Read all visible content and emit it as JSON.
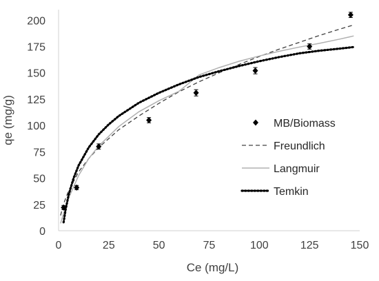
{
  "chart_data": {
    "type": "scatter",
    "xlabel": "Ce (mg/L)",
    "ylabel": "qe (mg/g)",
    "xlim": [
      0,
      150
    ],
    "ylim": [
      0,
      210
    ],
    "x_ticks": [
      "0",
      "25",
      "50",
      "75",
      "100",
      "125",
      "150"
    ],
    "y_ticks": [
      "0",
      "25",
      "50",
      "75",
      "100",
      "125",
      "150",
      "175",
      "200"
    ],
    "grid": "none",
    "legend_position": "right",
    "series": [
      {
        "name": "MB/Biomass",
        "kind": "points",
        "color": "#000000",
        "x": [
          2.5,
          9,
          20,
          45,
          68.5,
          98,
          125,
          145.5
        ],
        "y": [
          22,
          41,
          80,
          105,
          131,
          152,
          175,
          205
        ],
        "error": [
          2,
          2,
          2.5,
          2.5,
          3,
          3,
          2.5,
          2.5
        ]
      },
      {
        "name": "Freundlich",
        "kind": "line",
        "style": "dashed",
        "color": "#404040",
        "x": [
          1,
          2.5,
          5,
          10,
          15,
          20,
          30,
          40,
          50,
          60,
          70,
          80,
          90,
          100,
          110,
          120,
          130,
          140,
          147
        ],
        "y": [
          14.5,
          25.5,
          38,
          56,
          68.5,
          79,
          96,
          109,
          121,
          132,
          141.5,
          150,
          158,
          165.5,
          172.5,
          179,
          185.5,
          191.5,
          195.5
        ]
      },
      {
        "name": "Langmuir",
        "kind": "line",
        "style": "solid",
        "color": "#b0b0b0",
        "x": [
          1,
          2.5,
          5,
          10,
          15,
          20,
          30,
          40,
          50,
          60,
          70,
          80,
          90,
          100,
          110,
          120,
          130,
          140,
          147
        ],
        "y": [
          7,
          16.5,
          31,
          52.5,
          68.5,
          80.5,
          99,
          113,
          123.5,
          132.5,
          148,
          155,
          161,
          166,
          170.5,
          174.5,
          178,
          182,
          185
        ]
      },
      {
        "name": "Temkin",
        "kind": "line",
        "style": "dotted",
        "color": "#000000",
        "x": [
          2.5,
          3.5,
          5,
          7.5,
          10,
          15,
          20,
          25,
          30,
          40,
          50,
          60,
          70,
          80,
          90,
          100,
          110,
          120,
          130,
          140,
          147
        ],
        "y": [
          8,
          20,
          34,
          50,
          62,
          79,
          91.5,
          101,
          109,
          121.5,
          131,
          139,
          146,
          151.5,
          156.5,
          161,
          165,
          168.5,
          171,
          173,
          174.5
        ]
      }
    ]
  }
}
